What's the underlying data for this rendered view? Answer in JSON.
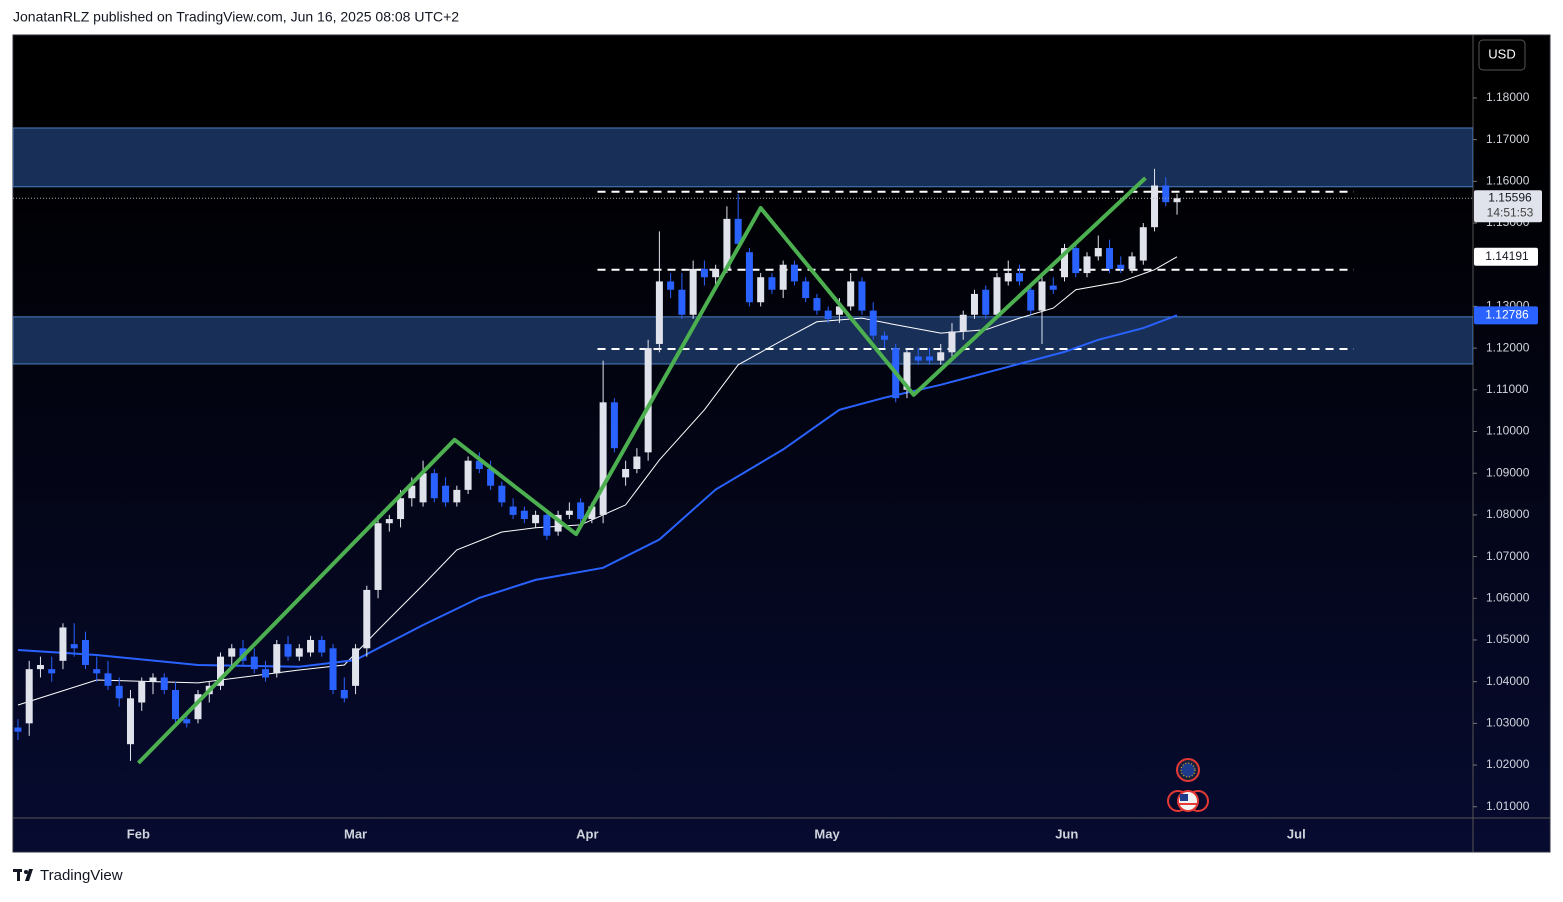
{
  "header": "JonatanRLZ published on TradingView.com, Jun 16, 2025 08:08 UTC+2",
  "brand": "TradingView",
  "chart_data": {
    "type": "candlestick",
    "currency": "USD",
    "countdown": "14:51:53",
    "up_color": "#e0e3eb",
    "down_color": "#2962ff",
    "candles": [
      [
        1.029,
        1.031,
        1.026,
        1.028
      ],
      [
        1.03,
        1.045,
        1.027,
        1.043
      ],
      [
        1.043,
        1.046,
        1.041,
        1.044
      ],
      [
        1.043,
        1.046,
        1.04,
        1.042
      ],
      [
        1.045,
        1.054,
        1.043,
        1.053
      ],
      [
        1.049,
        1.054,
        1.046,
        1.048
      ],
      [
        1.05,
        1.052,
        1.043,
        1.044
      ],
      [
        1.043,
        1.046,
        1.04,
        1.042
      ],
      [
        1.042,
        1.045,
        1.038,
        1.039
      ],
      [
        1.039,
        1.041,
        1.034,
        1.036
      ],
      [
        1.025,
        1.038,
        1.021,
        1.036
      ],
      [
        1.035,
        1.041,
        1.033,
        1.04
      ],
      [
        1.04,
        1.042,
        1.037,
        1.041
      ],
      [
        1.041,
        1.042,
        1.037,
        1.038
      ],
      [
        1.038,
        1.04,
        1.03,
        1.031
      ],
      [
        1.031,
        1.033,
        1.029,
        1.03
      ],
      [
        1.031,
        1.038,
        1.03,
        1.037
      ],
      [
        1.037,
        1.04,
        1.035,
        1.039
      ],
      [
        1.039,
        1.047,
        1.038,
        1.046
      ],
      [
        1.046,
        1.049,
        1.044,
        1.048
      ],
      [
        1.048,
        1.05,
        1.044,
        1.045
      ],
      [
        1.046,
        1.048,
        1.042,
        1.043
      ],
      [
        1.043,
        1.045,
        1.04,
        1.041
      ],
      [
        1.042,
        1.05,
        1.041,
        1.049
      ],
      [
        1.049,
        1.051,
        1.045,
        1.046
      ],
      [
        1.046,
        1.049,
        1.045,
        1.048
      ],
      [
        1.047,
        1.051,
        1.046,
        1.05
      ],
      [
        1.05,
        1.051,
        1.046,
        1.047
      ],
      [
        1.048,
        1.049,
        1.037,
        1.038
      ],
      [
        1.038,
        1.041,
        1.035,
        1.036
      ],
      [
        1.039,
        1.049,
        1.037,
        1.048
      ],
      [
        1.048,
        1.063,
        1.046,
        1.062
      ],
      [
        1.062,
        1.08,
        1.06,
        1.078
      ],
      [
        1.078,
        1.08,
        1.076,
        1.079
      ],
      [
        1.079,
        1.086,
        1.077,
        1.084
      ],
      [
        1.084,
        1.089,
        1.082,
        1.087
      ],
      [
        1.083,
        1.093,
        1.082,
        1.09
      ],
      [
        1.09,
        1.091,
        1.083,
        1.084
      ],
      [
        1.087,
        1.089,
        1.082,
        1.083
      ],
      [
        1.083,
        1.087,
        1.082,
        1.086
      ],
      [
        1.086,
        1.094,
        1.085,
        1.093
      ],
      [
        1.093,
        1.095,
        1.09,
        1.091
      ],
      [
        1.091,
        1.093,
        1.086,
        1.087
      ],
      [
        1.087,
        1.088,
        1.082,
        1.083
      ],
      [
        1.082,
        1.084,
        1.079,
        1.08
      ],
      [
        1.081,
        1.082,
        1.078,
        1.079
      ],
      [
        1.078,
        1.081,
        1.077,
        1.08
      ],
      [
        1.08,
        1.081,
        1.074,
        1.075
      ],
      [
        1.076,
        1.081,
        1.075,
        1.08
      ],
      [
        1.08,
        1.083,
        1.079,
        1.081
      ],
      [
        1.083,
        1.084,
        1.078,
        1.079
      ],
      [
        1.079,
        1.083,
        1.078,
        1.082
      ],
      [
        1.08,
        1.117,
        1.078,
        1.107
      ],
      [
        1.107,
        1.108,
        1.095,
        1.096
      ],
      [
        1.089,
        1.093,
        1.087,
        1.091
      ],
      [
        1.091,
        1.096,
        1.09,
        1.094
      ],
      [
        1.095,
        1.122,
        1.093,
        1.12
      ],
      [
        1.121,
        1.148,
        1.119,
        1.136
      ],
      [
        1.136,
        1.138,
        1.132,
        1.134
      ],
      [
        1.134,
        1.138,
        1.127,
        1.128
      ],
      [
        1.128,
        1.141,
        1.127,
        1.139
      ],
      [
        1.139,
        1.141,
        1.135,
        1.137
      ],
      [
        1.137,
        1.14,
        1.135,
        1.139
      ],
      [
        1.139,
        1.154,
        1.138,
        1.151
      ],
      [
        1.151,
        1.157,
        1.144,
        1.145
      ],
      [
        1.143,
        1.144,
        1.13,
        1.131
      ],
      [
        1.131,
        1.138,
        1.13,
        1.137
      ],
      [
        1.137,
        1.138,
        1.133,
        1.134
      ],
      [
        1.134,
        1.141,
        1.132,
        1.14
      ],
      [
        1.14,
        1.141,
        1.135,
        1.136
      ],
      [
        1.136,
        1.137,
        1.131,
        1.132
      ],
      [
        1.132,
        1.133,
        1.128,
        1.129
      ],
      [
        1.129,
        1.13,
        1.126,
        1.127
      ],
      [
        1.128,
        1.132,
        1.126,
        1.13
      ],
      [
        1.13,
        1.138,
        1.129,
        1.136
      ],
      [
        1.136,
        1.137,
        1.128,
        1.129
      ],
      [
        1.129,
        1.131,
        1.122,
        1.123
      ],
      [
        1.123,
        1.124,
        1.12,
        1.122
      ],
      [
        1.12,
        1.121,
        1.107,
        1.108
      ],
      [
        1.11,
        1.12,
        1.108,
        1.119
      ],
      [
        1.118,
        1.12,
        1.116,
        1.117
      ],
      [
        1.118,
        1.12,
        1.116,
        1.117
      ],
      [
        1.117,
        1.121,
        1.116,
        1.119
      ],
      [
        1.119,
        1.126,
        1.118,
        1.124
      ],
      [
        1.124,
        1.129,
        1.122,
        1.128
      ],
      [
        1.128,
        1.134,
        1.127,
        1.133
      ],
      [
        1.134,
        1.135,
        1.127,
        1.128
      ],
      [
        1.128,
        1.138,
        1.127,
        1.137
      ],
      [
        1.136,
        1.141,
        1.135,
        1.138
      ],
      [
        1.138,
        1.14,
        1.135,
        1.136
      ],
      [
        1.134,
        1.135,
        1.128,
        1.129
      ],
      [
        1.129,
        1.137,
        1.121,
        1.136
      ],
      [
        1.135,
        1.137,
        1.133,
        1.134
      ],
      [
        1.137,
        1.145,
        1.136,
        1.144
      ],
      [
        1.144,
        1.145,
        1.137,
        1.138
      ],
      [
        1.138,
        1.143,
        1.137,
        1.142
      ],
      [
        1.142,
        1.147,
        1.141,
        1.144
      ],
      [
        1.144,
        1.146,
        1.138,
        1.139
      ],
      [
        1.14,
        1.142,
        1.138,
        1.139
      ],
      [
        1.139,
        1.143,
        1.138,
        1.142
      ],
      [
        1.141,
        1.15,
        1.14,
        1.149
      ],
      [
        1.149,
        1.163,
        1.148,
        1.159
      ],
      [
        1.159,
        1.161,
        1.154,
        1.155
      ],
      [
        1.155,
        1.157,
        1.152,
        1.15596
      ]
    ],
    "series": [
      {
        "color": "#ffffff",
        "label_bg": "#ffffff",
        "label_fg": "#131722",
        "x": [
          0,
          7,
          16,
          25,
          29,
          32,
          36,
          39,
          43,
          46,
          50,
          54,
          57,
          61,
          64,
          68,
          71,
          75,
          78,
          82,
          86,
          89,
          92,
          94,
          98,
          101,
          103
        ],
        "values": [
          1.0344,
          1.0404,
          1.0397,
          1.0428,
          1.044,
          1.0524,
          1.0632,
          1.0716,
          1.0759,
          1.0769,
          1.0776,
          1.0824,
          1.0932,
          1.1052,
          1.116,
          1.122,
          1.1263,
          1.1272,
          1.1256,
          1.1236,
          1.1244,
          1.1272,
          1.1296,
          1.134,
          1.1359,
          1.1388,
          1.14191
        ]
      },
      {
        "color": "#2962ff",
        "label_bg": "#2962ff",
        "label_fg": "#ffffff",
        "x": [
          0,
          7,
          16,
          25,
          30,
          36,
          41,
          46,
          52,
          57,
          62,
          68,
          73,
          77,
          82,
          87,
          93,
          96,
          100,
          103
        ],
        "values": [
          1.0476,
          1.0464,
          1.044,
          1.0436,
          1.0452,
          1.0536,
          1.0601,
          1.0644,
          1.0673,
          1.0741,
          1.0861,
          1.0957,
          1.1052,
          1.1081,
          1.1112,
          1.1148,
          1.1191,
          1.122,
          1.1248,
          1.12786
        ]
      }
    ],
    "zones": [
      {
        "top": 1.1728,
        "bottom": 1.1587
      },
      {
        "top": 1.1275,
        "bottom": 1.1162
      }
    ],
    "levels": [
      {
        "value": 1.1575,
        "x": [
          51.5,
          118.7
        ]
      },
      {
        "value": 1.1388,
        "x": [
          51.5,
          118.7
        ]
      },
      {
        "value": 1.1198,
        "x": [
          51.5,
          118.7
        ]
      }
    ],
    "zigzag": {
      "color": "#4caf50",
      "x": [
        10.7,
        38.8,
        49.6,
        66,
        79.6,
        100.2
      ],
      "y": [
        1.0205,
        1.098,
        1.0754,
        1.1536,
        1.1088,
        1.1608
      ]
    },
    "xlim": [
      -0.44,
      129.3
    ],
    "xticks": [
      {
        "value": 10.7,
        "label": "Feb"
      },
      {
        "value": 30,
        "label": "Mar"
      },
      {
        "value": 50.6,
        "label": "Apr"
      },
      {
        "value": 71.9,
        "label": "May"
      },
      {
        "value": 93.2,
        "label": "Jun"
      },
      {
        "value": 113.6,
        "label": "Jul"
      }
    ],
    "ylim": [
      1.0073,
      1.1951
    ],
    "yticks": [
      {
        "value": 1.18,
        "label": "1.18000"
      },
      {
        "value": 1.17,
        "label": "1.17000"
      },
      {
        "value": 1.16,
        "label": "1.16000"
      },
      {
        "value": 1.15,
        "label": "1.15000"
      },
      {
        "value": 1.13,
        "label": "1.13000"
      },
      {
        "value": 1.12,
        "label": "1.12000"
      },
      {
        "value": 1.11,
        "label": "1.11000"
      },
      {
        "value": 1.1,
        "label": "1.10000"
      },
      {
        "value": 1.09,
        "label": "1.09000"
      },
      {
        "value": 1.08,
        "label": "1.08000"
      },
      {
        "value": 1.07,
        "label": "1.07000"
      },
      {
        "value": 1.06,
        "label": "1.06000"
      },
      {
        "value": 1.05,
        "label": "1.05000"
      },
      {
        "value": 1.04,
        "label": "1.04000"
      },
      {
        "value": 1.03,
        "label": "1.03000"
      },
      {
        "value": 1.02,
        "label": "1.02000"
      },
      {
        "value": 1.01,
        "label": "1.01000"
      }
    ],
    "grid": false
  }
}
